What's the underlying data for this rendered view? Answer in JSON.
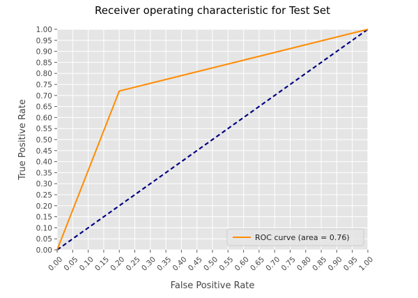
{
  "chart_data": {
    "type": "line",
    "title": "Receiver operating characteristic for Test Set",
    "xlabel": "False Positive Rate",
    "ylabel": "True Positive Rate",
    "xlim": [
      0.0,
      1.0
    ],
    "ylim": [
      0.0,
      1.0
    ],
    "x_ticks": [
      "0.00",
      "0.05",
      "0.10",
      "0.15",
      "0.20",
      "0.25",
      "0.30",
      "0.35",
      "0.40",
      "0.45",
      "0.50",
      "0.55",
      "0.60",
      "0.65",
      "0.70",
      "0.75",
      "0.80",
      "0.85",
      "0.90",
      "0.95",
      "1.00"
    ],
    "y_ticks": [
      "0.00",
      "0.05",
      "0.10",
      "0.15",
      "0.20",
      "0.25",
      "0.30",
      "0.35",
      "0.40",
      "0.45",
      "0.50",
      "0.55",
      "0.60",
      "0.65",
      "0.70",
      "0.75",
      "0.80",
      "0.85",
      "0.90",
      "0.95",
      "1.00"
    ],
    "grid": true,
    "legend_position": "bottom-right",
    "series": [
      {
        "name": "ROC curve (area = 0.76)",
        "color": "#ff8c00",
        "style": "solid",
        "x": [
          0.0,
          0.2,
          1.0
        ],
        "y": [
          0.0,
          0.72,
          1.0
        ]
      },
      {
        "color": "#000080",
        "style": "dashed",
        "x": [
          0.0,
          1.0
        ],
        "y": [
          0.0,
          1.0
        ]
      }
    ],
    "background_color": "#e5e5e5",
    "grid_color": "#ffffff"
  }
}
